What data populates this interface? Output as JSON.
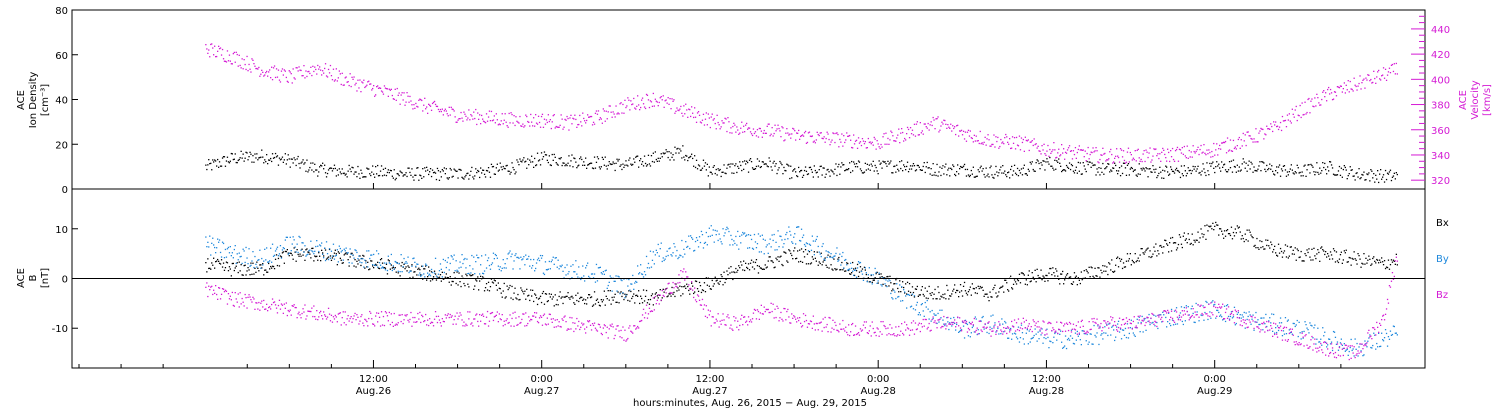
{
  "chart_data": [
    {
      "type": "scatter",
      "panel": "top",
      "ylabel": [
        "ACE",
        "Ion Density",
        "[cm⁻³]"
      ],
      "ylim": [
        0,
        80
      ],
      "yticks": [
        0,
        20,
        40,
        60,
        80
      ],
      "y2label": [
        "ACE",
        "Velocity",
        "[km/s]"
      ],
      "y2lim": [
        313,
        455
      ],
      "y2ticks": [
        320,
        340,
        360,
        380,
        400,
        420,
        440
      ],
      "colors": {
        "density": "#000000",
        "velocity": "#d41ad4"
      },
      "series": [
        {
          "name": "Ion Density",
          "axis": "left",
          "color": "#000000",
          "x_hours": [
            0,
            2,
            4,
            6,
            8,
            10,
            12,
            14,
            16,
            18,
            20,
            22,
            24,
            26,
            28,
            30,
            32,
            34,
            36,
            38,
            40,
            42,
            44,
            46,
            48,
            50,
            52,
            54,
            56,
            58,
            60,
            62,
            64,
            66,
            68,
            70,
            72,
            74,
            76,
            78,
            80,
            82,
            84,
            85
          ],
          "values": [
            10,
            14,
            15,
            13,
            9,
            8,
            8,
            7,
            7,
            7,
            8,
            10,
            14,
            13,
            12,
            11,
            14,
            17,
            8,
            10,
            12,
            7,
            8,
            10,
            10,
            11,
            9,
            9,
            8,
            8,
            12,
            10,
            9,
            9,
            8,
            8,
            10,
            11,
            9,
            8,
            10,
            7,
            6,
            6
          ],
          "spread": 3
        },
        {
          "name": "Velocity",
          "axis": "right",
          "color": "#d41ad4",
          "x_hours": [
            0,
            2,
            4,
            6,
            8,
            10,
            12,
            14,
            16,
            18,
            20,
            22,
            24,
            26,
            28,
            30,
            32,
            34,
            36,
            38,
            40,
            42,
            44,
            46,
            48,
            50,
            52,
            54,
            56,
            58,
            60,
            62,
            64,
            66,
            68,
            70,
            72,
            74,
            76,
            78,
            80,
            82,
            84,
            85
          ],
          "values": [
            425,
            418,
            408,
            402,
            410,
            400,
            393,
            386,
            378,
            372,
            370,
            368,
            368,
            366,
            370,
            380,
            385,
            376,
            368,
            362,
            360,
            356,
            354,
            352,
            350,
            358,
            366,
            358,
            352,
            350,
            345,
            342,
            340,
            340,
            340,
            342,
            345,
            352,
            360,
            375,
            388,
            396,
            404,
            408
          ],
          "spread": 6
        }
      ]
    },
    {
      "type": "scatter",
      "panel": "bottom",
      "ylabel": [
        "ACE",
        "B",
        "[nT]"
      ],
      "ylim": [
        -18,
        18
      ],
      "yticks": [
        -10,
        0,
        10
      ],
      "zero_line": true,
      "legend": [
        "Bx",
        "By",
        "Bz"
      ],
      "legend_placement": "right",
      "colors": {
        "Bx": "#000000",
        "By": "#1e88dc",
        "Bz": "#d41ad4"
      },
      "series": [
        {
          "name": "Bx",
          "color": "#000000",
          "x_hours": [
            0,
            2,
            4,
            6,
            8,
            10,
            12,
            14,
            16,
            18,
            20,
            22,
            24,
            26,
            28,
            30,
            32,
            34,
            36,
            38,
            40,
            42,
            44,
            46,
            48,
            50,
            52,
            54,
            56,
            58,
            60,
            62,
            64,
            66,
            68,
            70,
            72,
            74,
            76,
            78,
            80,
            82,
            84,
            85
          ],
          "values": [
            3,
            2,
            2,
            5,
            5,
            4,
            3,
            2,
            1,
            0,
            -1,
            -3,
            -4,
            -4,
            -4,
            -3,
            -4,
            -2,
            -1,
            2,
            3,
            5,
            4,
            2,
            0,
            -2,
            -3,
            -2,
            -3,
            0,
            1,
            0,
            2,
            4,
            6,
            8,
            10,
            9,
            6,
            5,
            5,
            4,
            3,
            4
          ],
          "spread": 1.5
        },
        {
          "name": "By",
          "color": "#1e88dc",
          "x_hours": [
            0,
            2,
            4,
            6,
            8,
            10,
            12,
            14,
            16,
            18,
            20,
            22,
            24,
            26,
            28,
            30,
            32,
            34,
            36,
            38,
            40,
            42,
            44,
            46,
            48,
            50,
            52,
            54,
            56,
            58,
            60,
            62,
            64,
            66,
            68,
            70,
            72,
            74,
            76,
            78,
            80,
            82,
            84,
            85
          ],
          "values": [
            7,
            5,
            4,
            7,
            6,
            5,
            4,
            3,
            2,
            3,
            3,
            4,
            3,
            2,
            1,
            -2,
            5,
            6,
            9,
            8,
            7,
            9,
            6,
            3,
            0,
            -4,
            -7,
            -10,
            -9,
            -11,
            -12,
            -12,
            -11,
            -10,
            -8,
            -7,
            -6,
            -8,
            -9,
            -10,
            -12,
            -14,
            -12,
            -11
          ],
          "spread": 2
        },
        {
          "name": "Bz",
          "color": "#d41ad4",
          "x_hours": [
            0,
            2,
            4,
            6,
            8,
            10,
            12,
            14,
            16,
            18,
            20,
            22,
            24,
            26,
            28,
            30,
            32,
            34,
            36,
            38,
            40,
            42,
            44,
            46,
            48,
            50,
            52,
            54,
            56,
            58,
            60,
            62,
            64,
            66,
            68,
            70,
            72,
            74,
            76,
            78,
            80,
            82,
            84,
            85
          ],
          "values": [
            -2,
            -4,
            -5,
            -6,
            -7,
            -8,
            -8,
            -8,
            -8,
            -8,
            -8,
            -8,
            -8,
            -9,
            -10,
            -11,
            -5,
            1,
            -8,
            -9,
            -6,
            -8,
            -9,
            -10,
            -10,
            -10,
            -9,
            -9,
            -10,
            -9,
            -10,
            -10,
            -9,
            -9,
            -8,
            -7,
            -6,
            -8,
            -10,
            -12,
            -14,
            -15,
            -8,
            5
          ],
          "spread": 1.5
        }
      ]
    }
  ],
  "x_axis": {
    "start": "Aug. 26, 2015 00:00",
    "xlim_hours": [
      -9.5,
      87
    ],
    "ticks": [
      {
        "hour": 12,
        "time": "12:00",
        "date": "Aug.26"
      },
      {
        "hour": 24,
        "time": "0:00",
        "date": "Aug.27"
      },
      {
        "hour": 36,
        "time": "12:00",
        "date": "Aug.27"
      },
      {
        "hour": 48,
        "time": "0:00",
        "date": "Aug.28"
      },
      {
        "hour": 60,
        "time": "12:00",
        "date": "Aug.28"
      },
      {
        "hour": 72,
        "time": "0:00",
        "date": "Aug.29"
      }
    ],
    "xlabel": "hours:minutes, Aug. 26, 2015 − Aug. 29, 2015"
  }
}
